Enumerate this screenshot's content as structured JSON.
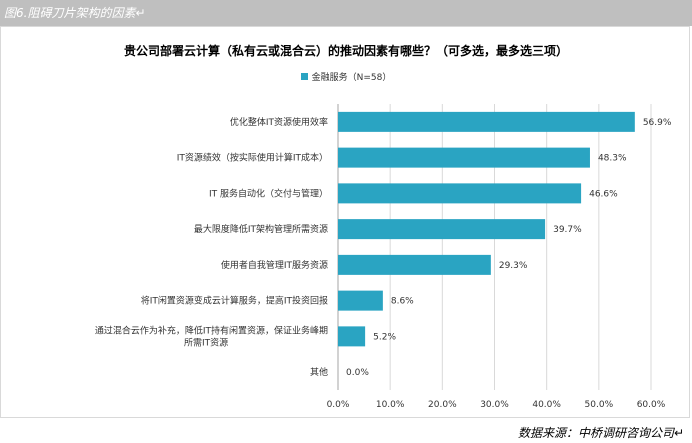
{
  "header": {
    "caption": "图6.阻碍刀片架构的因素↵"
  },
  "source": "数据来源：中桥调研咨询公司↵",
  "colors": {
    "bar": "#2aa4c2",
    "header_bg": "#bfbfbf",
    "gridline": "#d9d9d9"
  },
  "chart_data": {
    "type": "bar",
    "orientation": "horizontal",
    "title": "贵公司部署云计算（私有云或混合云）的推动因素有哪些？（可多选，最多选三项）",
    "legend": {
      "position": "top",
      "entries": [
        "金融服务（N=58）"
      ]
    },
    "categories": [
      "优化整体IT资源使用效率",
      "IT资源绩效（按实际使用计算IT成本）",
      "IT 服务自动化（交付与管理）",
      "最大限度降低IT架构管理所需资源",
      "使用者自我管理IT服务资源",
      "将IT闲置资源变成云计算服务，提高IT投资回报",
      "通过混合云作为补充，降低IT持有闲置资源，保证业务峰期所需IT资源",
      "其他"
    ],
    "series": [
      {
        "name": "金融服务（N=58）",
        "values": [
          56.9,
          48.3,
          46.6,
          39.7,
          29.3,
          8.6,
          5.2,
          0.0
        ],
        "labels": [
          "56.9%",
          "48.3%",
          "46.6%",
          "39.7%",
          "29.3%",
          "8.6%",
          "5.2%",
          "0.0%"
        ]
      }
    ],
    "xlim": [
      0,
      60
    ],
    "xticks": [
      "0.0%",
      "10.0%",
      "20.0%",
      "30.0%",
      "40.0%",
      "50.0%",
      "60.0%"
    ],
    "grid": true
  }
}
